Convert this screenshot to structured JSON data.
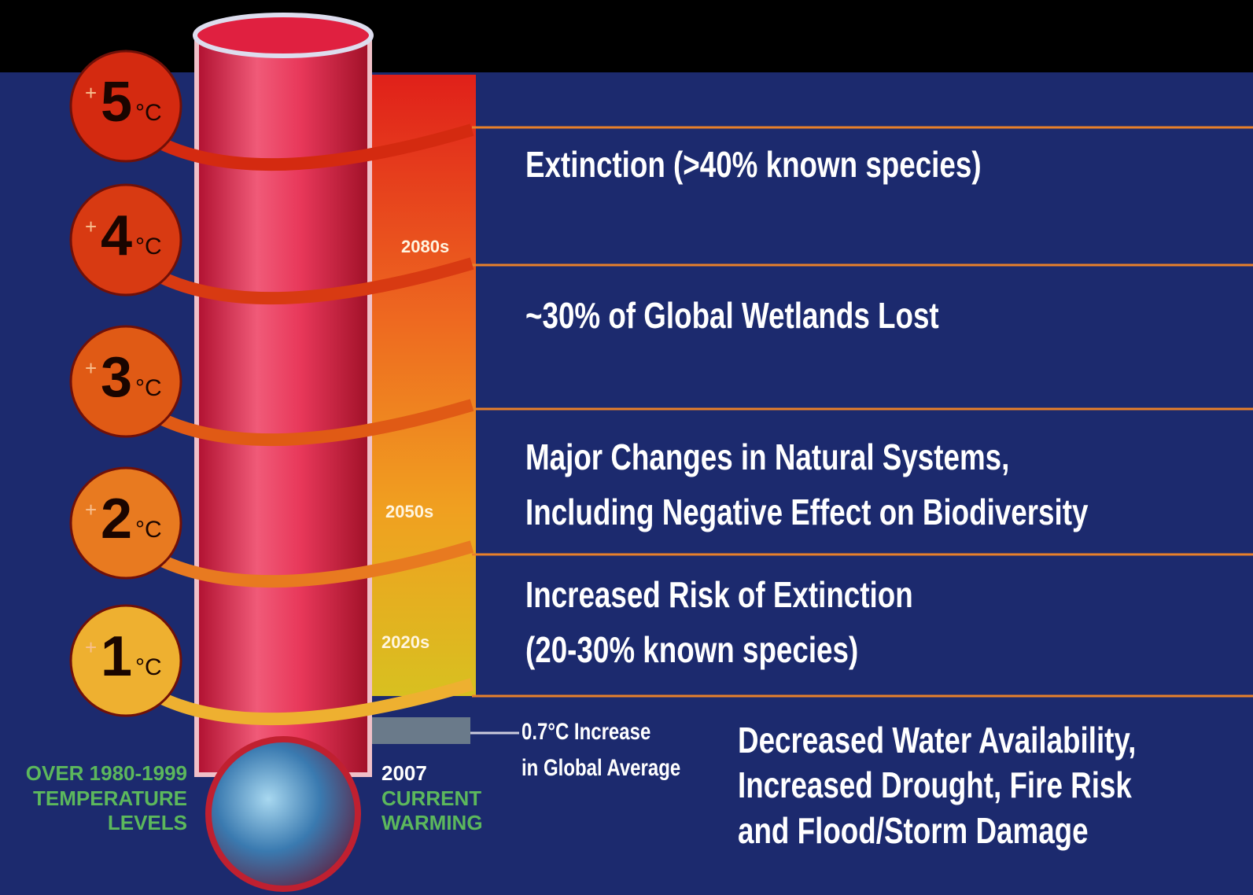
{
  "levels": [
    {
      "sign": "+",
      "degree": "5",
      "unit": "°C"
    },
    {
      "sign": "+",
      "degree": "4",
      "unit": "°C"
    },
    {
      "sign": "+",
      "degree": "3",
      "unit": "°C"
    },
    {
      "sign": "+",
      "degree": "2",
      "unit": "°C"
    },
    {
      "sign": "+",
      "degree": "1",
      "unit": "°C"
    }
  ],
  "periods": [
    "2080s",
    "2050s",
    "2020s"
  ],
  "impacts": [
    [
      "Extinction (>40% known species)"
    ],
    [
      "~30% of Global Wetlands Lost"
    ],
    [
      "Major Changes in Natural Systems,",
      "Including Negative Effect on Biodiversity"
    ],
    [
      "Increased Risk of Extinction",
      "(20-30% known species)"
    ],
    [
      "Decreased Water Availability,",
      "Increased Drought, Fire Risk",
      "and Flood/Storm Damage"
    ]
  ],
  "current_marker": [
    "0.7°C Increase",
    "in Global Average"
  ],
  "baseline_label": [
    "OVER 1980-1999",
    "TEMPERATURE",
    "LEVELS"
  ],
  "current_label": {
    "year": "2007",
    "lines": [
      "CURRENT",
      "WARMING"
    ]
  }
}
